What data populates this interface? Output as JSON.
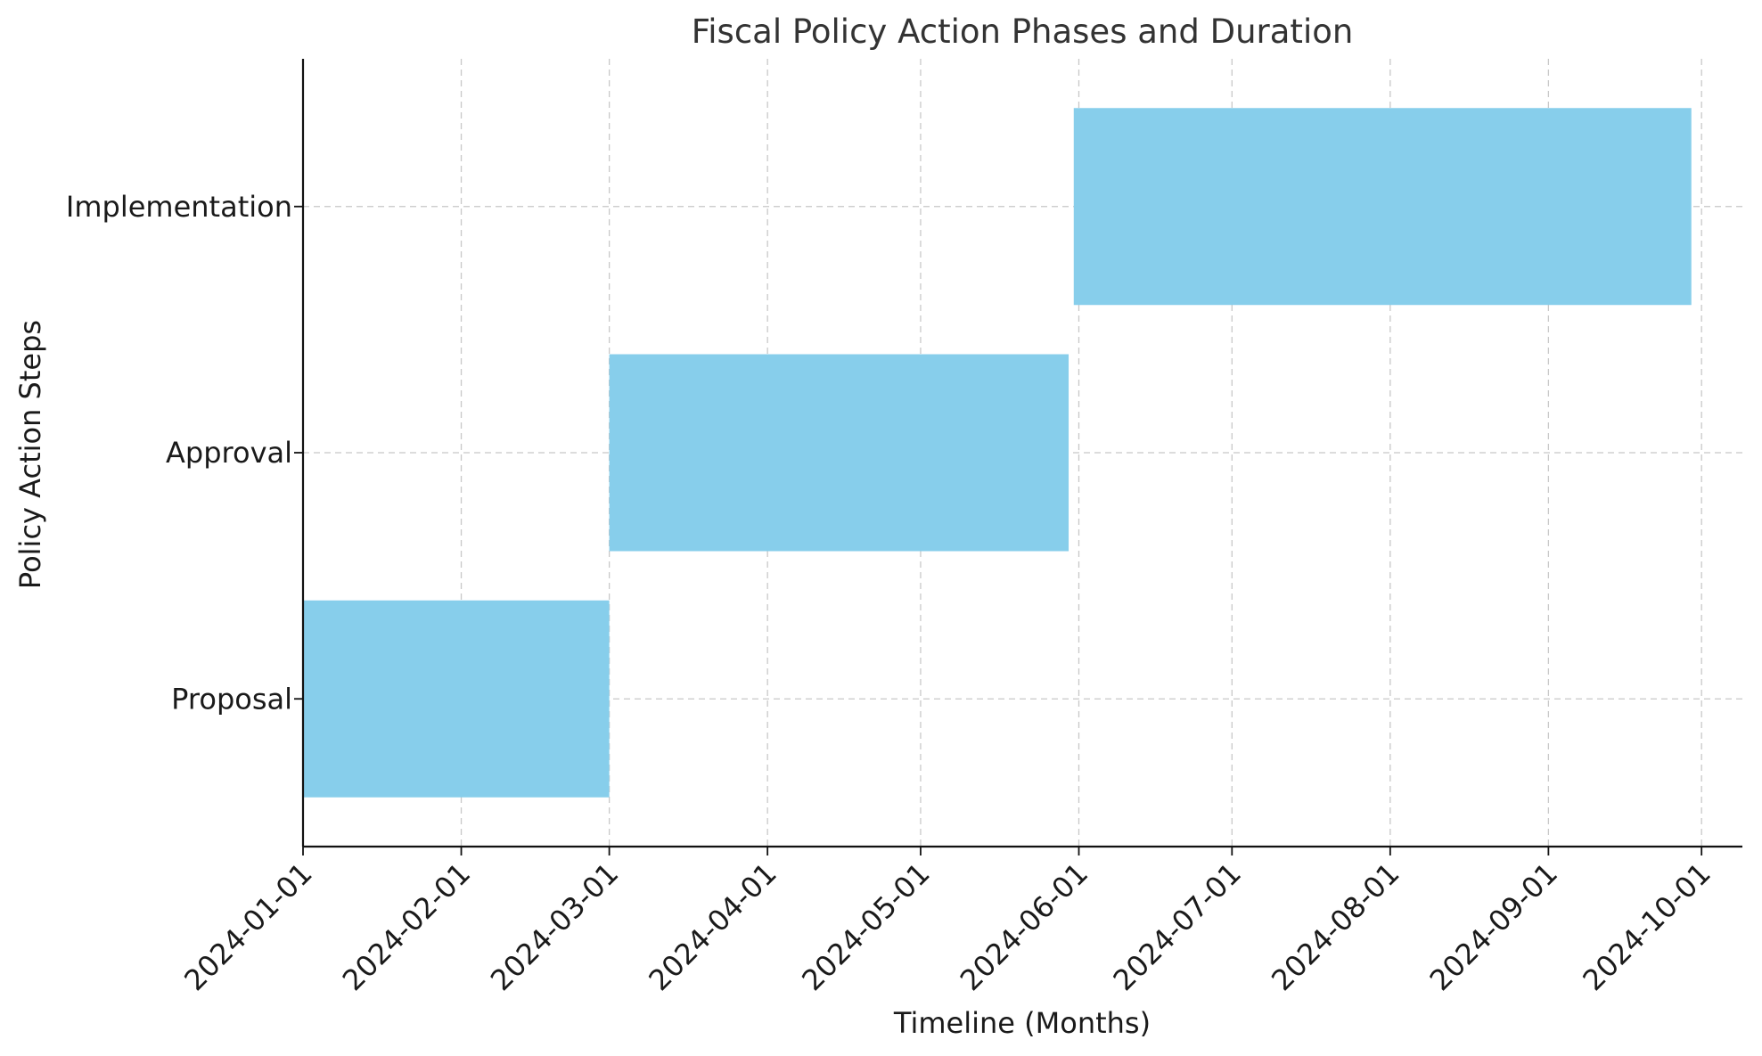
{
  "chart_data": {
    "type": "gantt",
    "title": "Fiscal Policy Action Phases and Duration",
    "xlabel": "Timeline (Months)",
    "ylabel": "Policy Action Steps",
    "xlim": [
      "2024-01-01",
      "2024-10-09"
    ],
    "x_ticks": [
      "2024-01-01",
      "2024-02-01",
      "2024-03-01",
      "2024-04-01",
      "2024-05-01",
      "2024-06-01",
      "2024-07-01",
      "2024-08-01",
      "2024-09-01",
      "2024-10-01"
    ],
    "categories": [
      "Proposal",
      "Approval",
      "Implementation"
    ],
    "tasks": [
      {
        "name": "Proposal",
        "start": "2024-01-01",
        "end": "2024-03-01"
      },
      {
        "name": "Approval",
        "start": "2024-03-01",
        "end": "2024-05-30"
      },
      {
        "name": "Implementation",
        "start": "2024-05-31",
        "end": "2024-09-29"
      }
    ],
    "bar_color": "#87CEEB",
    "grid": true
  }
}
